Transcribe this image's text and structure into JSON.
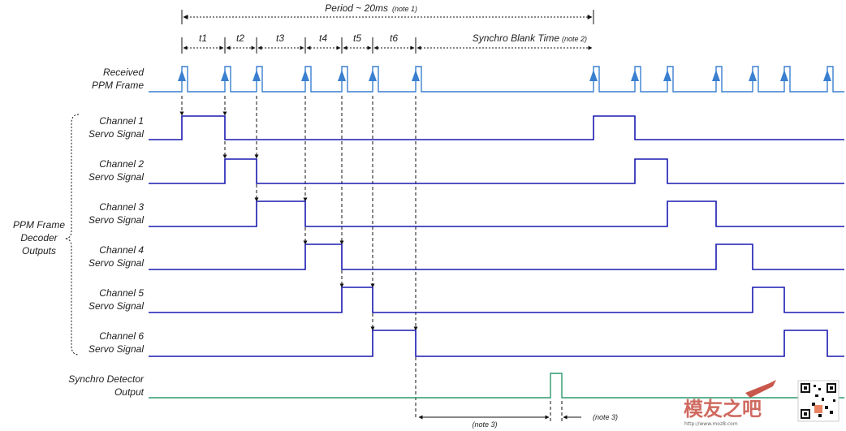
{
  "labels": {
    "period": "Period ~ 20ms",
    "period_note": "(note 1)",
    "intervals": [
      "t1",
      "t2",
      "t3",
      "t4",
      "t5",
      "t6"
    ],
    "blank": "Synchro Blank Time",
    "blank_note": "(note 2)",
    "received": [
      "Received",
      "PPM Frame"
    ],
    "channels": [
      [
        "Channel 1",
        "Servo Signal"
      ],
      [
        "Channel 2",
        "Servo Signal"
      ],
      [
        "Channel 3",
        "Servo Signal"
      ],
      [
        "Channel 4",
        "Servo Signal"
      ],
      [
        "Channel 5",
        "Servo Signal"
      ],
      [
        "Channel 6",
        "Servo Signal"
      ]
    ],
    "decoder": [
      "PPM Frame",
      "Decoder",
      "Outputs"
    ],
    "synchro": [
      "Synchro Detector",
      "Output"
    ],
    "note3": "(note 3)",
    "watermark": "模友之吧",
    "watermark_url": "http://www.moz8.com"
  },
  "colors": {
    "ppm": "#3a7fd0",
    "servo": "#1a1ab0",
    "synchro": "#2e9a6e",
    "watermark": "#c0392b"
  }
}
